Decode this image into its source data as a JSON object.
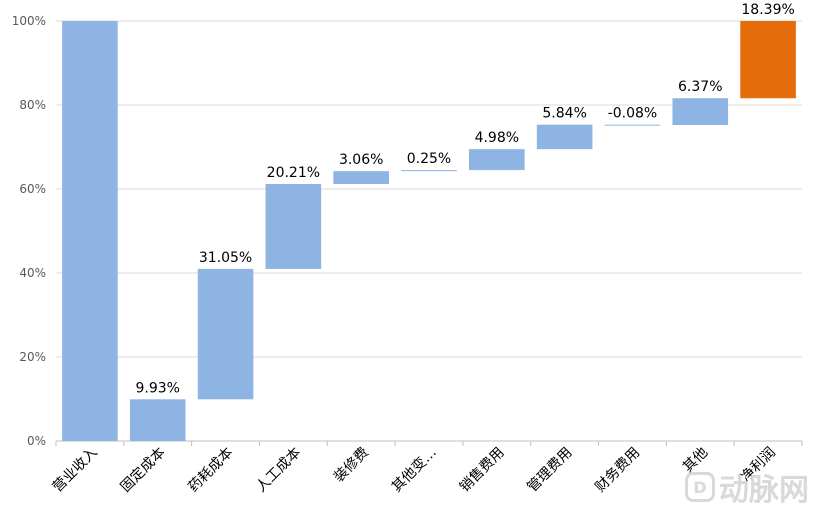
{
  "chart_data": {
    "type": "bar",
    "subtype": "waterfall",
    "title": "",
    "xlabel": "",
    "ylabel": "",
    "ylim": [
      0,
      100
    ],
    "y_ticks": [
      "0%",
      "20%",
      "40%",
      "60%",
      "80%",
      "100%"
    ],
    "grid": true,
    "categories": [
      "营业收入",
      "固定成本",
      "药耗成本",
      "人工成本",
      "装修费",
      "其他变…",
      "销售费用",
      "管理费用",
      "财务费用",
      "其他",
      "净利润"
    ],
    "bars": [
      {
        "category": "营业收入",
        "bottom": 0,
        "top": 100,
        "label": "",
        "color": "#8eb4e3"
      },
      {
        "category": "固定成本",
        "bottom": 0,
        "top": 9.93,
        "label": "9.93%",
        "color": "#8eb4e3"
      },
      {
        "category": "药耗成本",
        "bottom": 9.93,
        "top": 40.98,
        "label": "31.05%",
        "color": "#8eb4e3"
      },
      {
        "category": "人工成本",
        "bottom": 40.98,
        "top": 61.19,
        "label": "20.21%",
        "color": "#8eb4e3"
      },
      {
        "category": "装修费",
        "bottom": 61.19,
        "top": 64.25,
        "label": "3.06%",
        "color": "#8eb4e3"
      },
      {
        "category": "其他变…",
        "bottom": 64.25,
        "top": 64.5,
        "label": "0.25%",
        "color": "#8eb4e3"
      },
      {
        "category": "销售费用",
        "bottom": 64.5,
        "top": 69.48,
        "label": "4.98%",
        "color": "#8eb4e3"
      },
      {
        "category": "管理费用",
        "bottom": 69.48,
        "top": 75.32,
        "label": "5.84%",
        "color": "#8eb4e3"
      },
      {
        "category": "财务费用",
        "bottom": 75.24,
        "top": 75.32,
        "label": "-0.08%",
        "color": "#8eb4e3"
      },
      {
        "category": "其他",
        "bottom": 75.24,
        "top": 81.61,
        "label": "6.37%",
        "color": "#8eb4e3"
      },
      {
        "category": "净利润",
        "bottom": 81.61,
        "top": 100,
        "label": "18.39%",
        "color": "#e46c0a"
      }
    ]
  },
  "watermark": {
    "logo": "D",
    "text": "动脉网"
  }
}
